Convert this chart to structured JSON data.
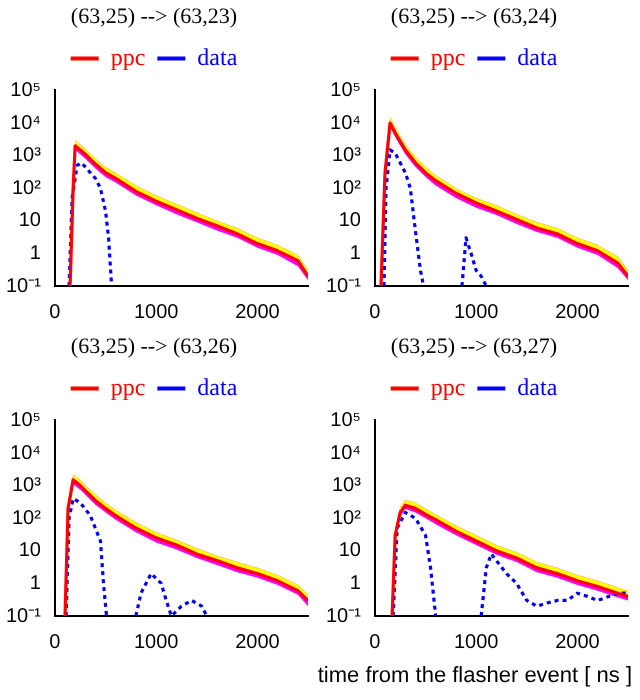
{
  "chart_data": [
    {
      "type": "line",
      "title": "(63,25) --> (63,23)",
      "log": "y",
      "legend": "top",
      "grid": false,
      "marker": "none",
      "xlim": [
        0,
        2500
      ],
      "xticks": [
        0,
        1000,
        2000
      ],
      "ylim": [
        0.1,
        100000
      ],
      "yticks": [
        {
          "value": 0.1,
          "label": "10⁻¹"
        },
        {
          "value": 1,
          "label": "1"
        },
        {
          "value": 10,
          "label": "10"
        },
        {
          "value": 100,
          "label": "10²"
        },
        {
          "value": 1000,
          "label": "10³"
        },
        {
          "value": 10000,
          "label": "10⁴"
        },
        {
          "value": 100000,
          "label": "10⁵"
        }
      ],
      "series": [
        {
          "name": "ppc",
          "color": "#ff0000",
          "line_style": "solid",
          "x": [
            150,
            180,
            200,
            300,
            400,
            500,
            600,
            800,
            1000,
            1200,
            1400,
            1600,
            1800,
            2000,
            2200,
            2400,
            2500
          ],
          "values": [
            0.1,
            100,
            2000,
            1100,
            550,
            300,
            200,
            80,
            40,
            22,
            12,
            7,
            4,
            2,
            1.2,
            0.6,
            0.2
          ],
          "upper": [
            0.15,
            150,
            3000,
            1600,
            800,
            450,
            300,
            120,
            60,
            33,
            18,
            10,
            6,
            3,
            1.8,
            0.9,
            0.3
          ],
          "lower": [
            0.1,
            75,
            1500,
            800,
            400,
            220,
            150,
            60,
            30,
            16,
            9,
            5,
            3,
            1.5,
            0.9,
            0.4,
            0.15
          ]
        },
        {
          "name": "data",
          "color": "#0000ff",
          "line_style": "dotted",
          "x": [
            140,
            170,
            220,
            260,
            300,
            400,
            450,
            500,
            530,
            560
          ],
          "values": [
            0.1,
            50,
            500,
            600,
            450,
            200,
            100,
            20,
            3,
            0.1
          ]
        }
      ]
    },
    {
      "type": "line",
      "title": "(63,25) --> (63,24)",
      "log": "y",
      "legend": "top",
      "grid": false,
      "marker": "none",
      "xlim": [
        0,
        2500
      ],
      "xticks": [
        0,
        1000,
        2000
      ],
      "ylim": [
        0.1,
        100000
      ],
      "yticks": [
        {
          "value": 0.1,
          "label": "10⁻¹"
        },
        {
          "value": 1,
          "label": "1"
        },
        {
          "value": 10,
          "label": "10"
        },
        {
          "value": 100,
          "label": "10²"
        },
        {
          "value": 1000,
          "label": "10³"
        },
        {
          "value": 10000,
          "label": "10⁴"
        },
        {
          "value": 100000,
          "label": "10⁵"
        }
      ],
      "series": [
        {
          "name": "ppc",
          "color": "#ff0000",
          "line_style": "solid",
          "x": [
            60,
            100,
            150,
            200,
            300,
            400,
            500,
            600,
            800,
            1000,
            1200,
            1400,
            1600,
            1800,
            2000,
            2200,
            2400,
            2500
          ],
          "values": [
            0.1,
            300,
            10000,
            5000,
            1500,
            600,
            300,
            170,
            70,
            35,
            20,
            11,
            6,
            4,
            2,
            1.2,
            0.5,
            0.2
          ],
          "upper": [
            0.15,
            450,
            15000,
            7500,
            2200,
            900,
            450,
            250,
            100,
            50,
            30,
            16,
            9,
            6,
            3,
            1.8,
            0.8,
            0.3
          ],
          "lower": [
            0.1,
            220,
            7500,
            3700,
            1100,
            450,
            220,
            120,
            50,
            25,
            15,
            8,
            4.5,
            3,
            1.5,
            0.9,
            0.35,
            0.15
          ]
        },
        {
          "name": "data",
          "color": "#0000ff",
          "line_style": "dotted",
          "x": [
            90,
            110,
            150,
            200,
            300,
            350,
            400,
            450,
            480,
            600,
            860,
            900,
            950,
            1000,
            1050,
            1100
          ],
          "values": [
            0.1,
            100,
            1500,
            1200,
            300,
            100,
            5,
            0.3,
            0.1,
            null,
            0.1,
            3,
            1,
            0.3,
            0.2,
            0.1
          ]
        }
      ]
    },
    {
      "type": "line",
      "title": "(63,25) --> (63,26)",
      "log": "y",
      "legend": "top",
      "grid": false,
      "marker": "none",
      "xlim": [
        0,
        2500
      ],
      "xticks": [
        0,
        1000,
        2000
      ],
      "ylim": [
        0.1,
        100000
      ],
      "yticks": [
        {
          "value": 0.1,
          "label": "10⁻¹"
        },
        {
          "value": 1,
          "label": "1"
        },
        {
          "value": 10,
          "label": "10"
        },
        {
          "value": 100,
          "label": "10²"
        },
        {
          "value": 1000,
          "label": "10³"
        },
        {
          "value": 10000,
          "label": "10⁴"
        },
        {
          "value": 100000,
          "label": "10⁵"
        }
      ],
      "series": [
        {
          "name": "ppc",
          "color": "#ff0000",
          "line_style": "solid",
          "x": [
            100,
            130,
            180,
            250,
            300,
            400,
            500,
            600,
            800,
            1000,
            1200,
            1400,
            1600,
            1800,
            2000,
            2200,
            2400,
            2500
          ],
          "values": [
            0.1,
            200,
            1500,
            1000,
            700,
            350,
            200,
            120,
            50,
            25,
            15,
            8,
            5,
            3,
            2,
            1.2,
            0.6,
            0.3
          ],
          "upper": [
            0.15,
            300,
            2200,
            1500,
            1000,
            520,
            300,
            180,
            75,
            37,
            22,
            12,
            7,
            4.5,
            3,
            1.8,
            0.9,
            0.45
          ],
          "lower": [
            0.1,
            150,
            1100,
            750,
            520,
            260,
            150,
            90,
            37,
            18,
            11,
            6,
            3.7,
            2.2,
            1.5,
            0.9,
            0.45,
            0.2
          ]
        },
        {
          "name": "data",
          "color": "#0000ff",
          "line_style": "dotted",
          "x": [
            110,
            140,
            180,
            250,
            350,
            450,
            480,
            510,
            650,
            800,
            850,
            950,
            1050,
            1100,
            1150,
            1250,
            1350,
            1450,
            1500
          ],
          "values": [
            0.1,
            100,
            400,
            300,
            120,
            20,
            1,
            0.1,
            null,
            0.1,
            0.5,
            2,
            1,
            0.3,
            0.1,
            0.2,
            0.3,
            0.2,
            0.1
          ]
        }
      ]
    },
    {
      "type": "line",
      "title": "(63,25) --> (63,27)",
      "xlabel": "time from the flasher event [ ns ]",
      "log": "y",
      "legend": "top",
      "grid": false,
      "marker": "none",
      "xlim": [
        0,
        2500
      ],
      "xticks": [
        0,
        1000,
        2000
      ],
      "ylim": [
        0.1,
        100000
      ],
      "yticks": [
        {
          "value": 0.1,
          "label": "10⁻¹"
        },
        {
          "value": 1,
          "label": "1"
        },
        {
          "value": 10,
          "label": "10"
        },
        {
          "value": 100,
          "label": "10²"
        },
        {
          "value": 1000,
          "label": "10³"
        },
        {
          "value": 10000,
          "label": "10⁴"
        },
        {
          "value": 100000,
          "label": "10⁵"
        }
      ],
      "series": [
        {
          "name": "ppc",
          "color": "#ff0000",
          "line_style": "solid",
          "x": [
            170,
            200,
            250,
            300,
            400,
            500,
            600,
            800,
            1000,
            1200,
            1400,
            1600,
            1800,
            2000,
            2200,
            2400,
            2500
          ],
          "values": [
            0.1,
            30,
            150,
            250,
            200,
            130,
            90,
            40,
            20,
            10,
            6,
            3,
            2,
            1.2,
            0.8,
            0.5,
            0.4
          ],
          "upper": [
            0.15,
            45,
            220,
            370,
            300,
            200,
            130,
            60,
            30,
            15,
            9,
            4.5,
            3,
            1.8,
            1.2,
            0.75,
            0.6
          ],
          "lower": [
            0.1,
            22,
            110,
            190,
            150,
            100,
            65,
            30,
            15,
            7.5,
            4.5,
            2.2,
            1.5,
            0.9,
            0.6,
            0.37,
            0.3
          ]
        },
        {
          "name": "data",
          "color": "#0000ff",
          "line_style": "dotted",
          "x": [
            180,
            220,
            300,
            400,
            500,
            550,
            600,
            800,
            1050,
            1100,
            1150,
            1200,
            1300,
            1400,
            1500,
            1600,
            1700,
            1800,
            1900,
            2000,
            2100,
            2200,
            2400,
            2500
          ],
          "values": [
            0.1,
            50,
            150,
            100,
            30,
            3,
            0.1,
            null,
            0.1,
            3,
            8,
            5,
            2,
            1,
            0.3,
            0.2,
            0.25,
            0.3,
            0.3,
            0.5,
            0.4,
            0.3,
            0.5,
            0.5
          ]
        }
      ]
    }
  ]
}
